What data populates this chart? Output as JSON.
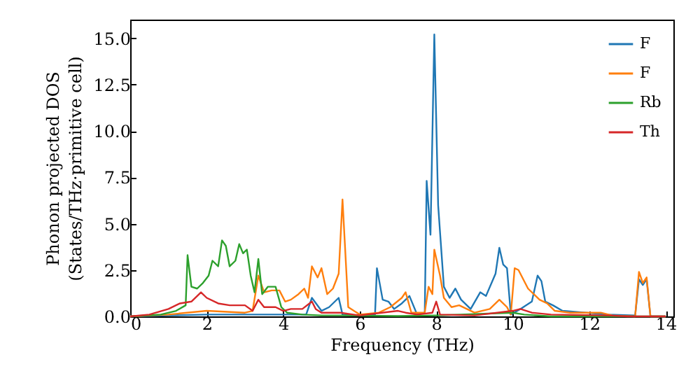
{
  "chart_data": {
    "type": "line",
    "xlabel": "Frequency (THz)",
    "ylabel": "Phonon projected DOS\n(States/THz·primitive cell)",
    "xlim": [
      0,
      14.2
    ],
    "xticks": [
      0,
      2,
      4,
      6,
      8,
      10,
      12,
      14
    ],
    "ylim": [
      0,
      16
    ],
    "yticks": [
      {
        "value": 0,
        "label": "0.0"
      },
      {
        "value": 2.5,
        "label": "2.5"
      },
      {
        "value": 5,
        "label": "5.0"
      },
      {
        "value": 7.5,
        "label": "7.5"
      },
      {
        "value": 10,
        "label": "10.0"
      },
      {
        "value": 12.5,
        "label": "12.5"
      },
      {
        "value": 15,
        "label": "15.0"
      }
    ],
    "grid": false,
    "legend": "top right",
    "series": [
      {
        "name": "F",
        "color": "#1f77b4",
        "x": [
          0,
          1,
          2,
          3,
          4,
          4.6,
          4.75,
          5.0,
          5.2,
          5.45,
          5.55,
          6.0,
          6.4,
          6.45,
          6.6,
          6.75,
          6.9,
          7.1,
          7.3,
          7.5,
          7.7,
          7.75,
          7.85,
          7.95,
          8.05,
          8.2,
          8.35,
          8.5,
          8.65,
          8.9,
          9.15,
          9.3,
          9.55,
          9.65,
          9.75,
          9.85,
          9.95,
          10.2,
          10.5,
          10.65,
          10.75,
          10.85,
          11.05,
          11.3,
          12.5,
          13.2,
          13.3,
          13.4,
          13.5,
          13.6,
          14
        ],
        "values": [
          0,
          0.05,
          0.1,
          0.1,
          0.1,
          0.1,
          1.0,
          0.3,
          0.5,
          1.0,
          0.1,
          0.05,
          0.1,
          2.6,
          0.9,
          0.8,
          0.4,
          0.7,
          1.1,
          0.1,
          0.2,
          7.3,
          4.4,
          15.2,
          6.0,
          1.6,
          1.0,
          1.5,
          0.9,
          0.4,
          1.3,
          1.1,
          2.3,
          3.7,
          2.8,
          2.6,
          0.1,
          0.4,
          0.8,
          2.2,
          1.9,
          0.8,
          0.6,
          0.3,
          0.1,
          0.05,
          2.0,
          1.7,
          2.0,
          0,
          0
        ]
      },
      {
        "name": "F",
        "color": "#ff7f0e",
        "x": [
          0,
          1,
          2,
          3,
          3.2,
          3.35,
          3.5,
          3.7,
          3.9,
          4.05,
          4.2,
          4.4,
          4.55,
          4.65,
          4.75,
          4.9,
          5.0,
          5.15,
          5.3,
          5.45,
          5.55,
          5.7,
          6.0,
          6.5,
          6.8,
          7.1,
          7.2,
          7.35,
          7.7,
          7.8,
          7.9,
          7.95,
          8.1,
          8.2,
          8.4,
          8.6,
          9.0,
          9.4,
          9.65,
          9.85,
          9.95,
          10.05,
          10.15,
          10.4,
          10.7,
          10.9,
          11.1,
          11.5,
          12.3,
          12.6,
          13.2,
          13.3,
          13.4,
          13.5,
          13.6,
          14
        ],
        "values": [
          0,
          0.1,
          0.3,
          0.2,
          0.3,
          2.2,
          1.3,
          1.4,
          1.4,
          0.8,
          0.9,
          1.2,
          1.5,
          1.0,
          2.7,
          2.1,
          2.6,
          1.2,
          1.5,
          2.3,
          6.3,
          0.5,
          0.1,
          0.2,
          0.5,
          1.0,
          1.3,
          0.2,
          0.2,
          1.6,
          1.2,
          3.6,
          2.2,
          1.0,
          0.5,
          0.6,
          0.2,
          0.4,
          0.9,
          0.5,
          0.1,
          2.6,
          2.5,
          1.5,
          0.9,
          0.7,
          0.3,
          0.2,
          0.2,
          0.05,
          0,
          2.4,
          1.8,
          2.1,
          0,
          0
        ]
      },
      {
        "name": "Rb",
        "color": "#2ca02c",
        "x": [
          0,
          0.8,
          1.2,
          1.45,
          1.5,
          1.6,
          1.75,
          1.9,
          2.05,
          2.15,
          2.3,
          2.4,
          2.5,
          2.6,
          2.75,
          2.85,
          2.95,
          3.05,
          3.15,
          3.25,
          3.35,
          3.45,
          3.6,
          3.8,
          3.95,
          4.1,
          4.5,
          5.0,
          5.5,
          7,
          8,
          10,
          10.3,
          11,
          14
        ],
        "values": [
          0,
          0.1,
          0.3,
          0.6,
          3.3,
          1.6,
          1.5,
          1.8,
          2.2,
          3.0,
          2.7,
          4.1,
          3.8,
          2.7,
          3.0,
          3.9,
          3.4,
          3.6,
          2.2,
          1.3,
          3.1,
          1.2,
          1.6,
          1.6,
          0.5,
          0.2,
          0.1,
          0.05,
          0.05,
          0.02,
          0.05,
          0.2,
          0.1,
          0,
          0
        ]
      },
      {
        "name": "Th",
        "color": "#d62728",
        "x": [
          0,
          0.5,
          1.0,
          1.3,
          1.6,
          1.85,
          2.0,
          2.3,
          2.6,
          3.0,
          3.2,
          3.35,
          3.5,
          3.8,
          4.0,
          4.2,
          4.5,
          4.75,
          4.85,
          5.0,
          5.5,
          6.0,
          7.0,
          7.2,
          7.5,
          7.9,
          8.0,
          8.1,
          9.0,
          10.0,
          10.2,
          10.5,
          11,
          12.5,
          13,
          14
        ],
        "values": [
          0,
          0.1,
          0.4,
          0.7,
          0.8,
          1.3,
          1.0,
          0.7,
          0.6,
          0.6,
          0.3,
          0.9,
          0.5,
          0.5,
          0.3,
          0.4,
          0.4,
          0.8,
          0.4,
          0.2,
          0.2,
          0.05,
          0.3,
          0.2,
          0.1,
          0.2,
          0.8,
          0.1,
          0.05,
          0.3,
          0.4,
          0.2,
          0.1,
          0.05,
          0,
          0
        ]
      }
    ]
  }
}
